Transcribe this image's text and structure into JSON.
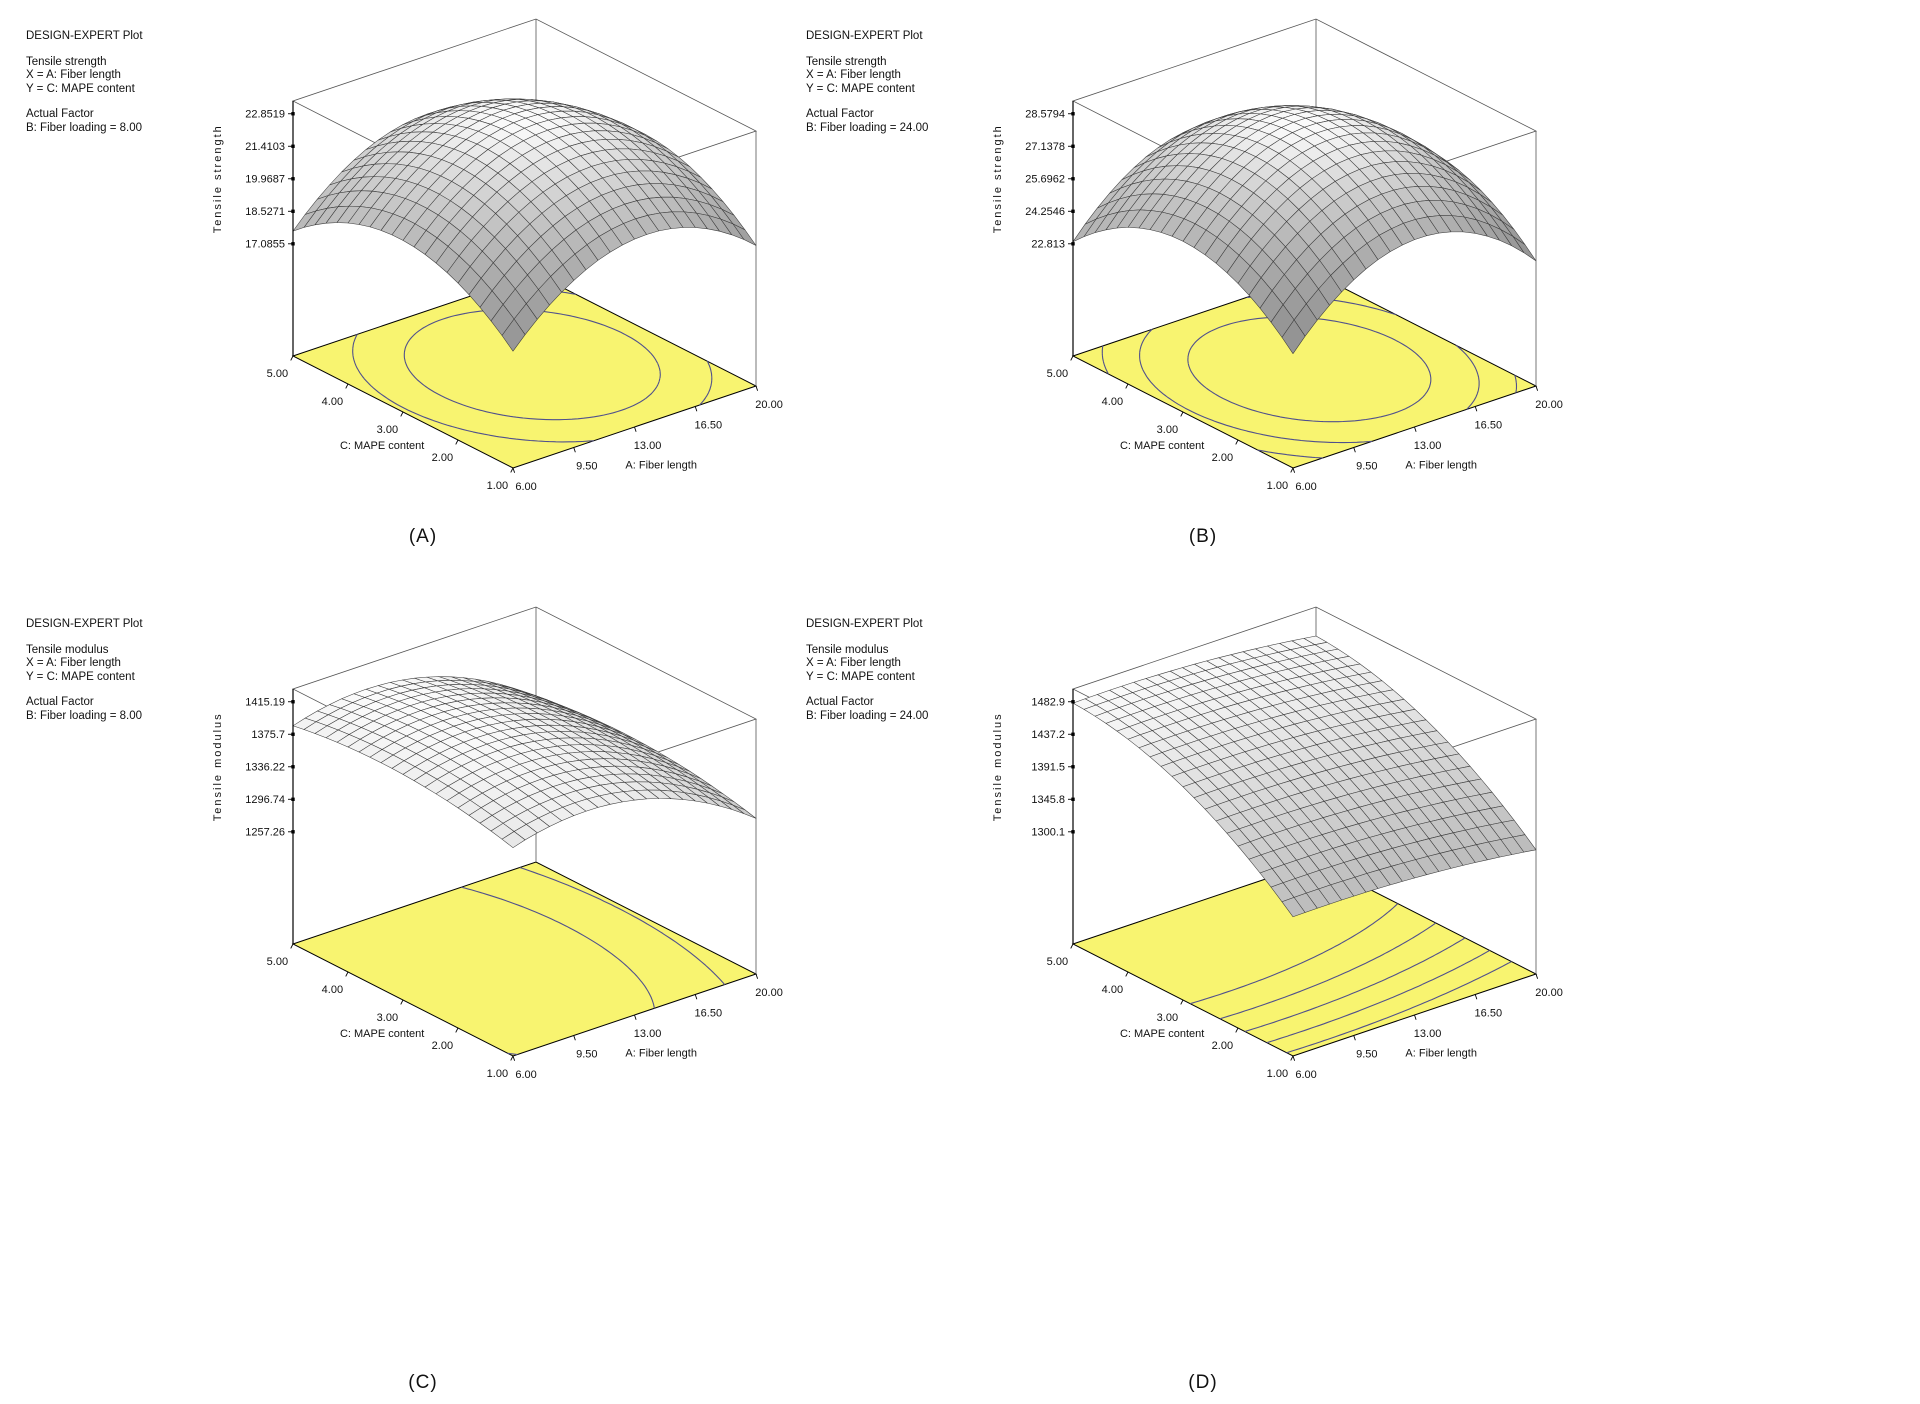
{
  "style": {
    "background": "#FFFFFF",
    "floor_color": "#F8F470",
    "contour_color": "#50508C",
    "mesh_line_color": "#3C3C3C",
    "box_line_color": "#555555",
    "axis_color": "#000000",
    "text_color": "#111111"
  },
  "panels": [
    {
      "caption": "(A)",
      "info": {
        "header": "DESIGN-EXPERT Plot",
        "response": "Tensile strength",
        "x_line": "X = A: Fiber length",
        "y_line": "Y = C: MAPE content",
        "actual_factor_label": "Actual Factor",
        "actual_factor_value": "B: Fiber loading = 8.00"
      }
    },
    {
      "caption": "(B)",
      "info": {
        "header": "DESIGN-EXPERT Plot",
        "response": "Tensile strength",
        "x_line": "X = A: Fiber length",
        "y_line": "Y = C: MAPE content",
        "actual_factor_label": "Actual Factor",
        "actual_factor_value": "B: Fiber loading = 24.00"
      }
    },
    {
      "caption": "(C)",
      "info": {
        "header": "DESIGN-EXPERT Plot",
        "response": "Tensile modulus",
        "x_line": "X = A: Fiber length",
        "y_line": "Y = C: MAPE content",
        "actual_factor_label": "Actual Factor",
        "actual_factor_value": "B: Fiber loading = 8.00"
      }
    },
    {
      "caption": "(D)",
      "info": {
        "header": "DESIGN-EXPERT Plot",
        "response": "Tensile modulus",
        "x_line": "X = A: Fiber length",
        "y_line": "Y = C: MAPE content",
        "actual_factor_label": "Actual Factor",
        "actual_factor_value": "B: Fiber loading = 24.00"
      }
    }
  ],
  "chart_data": [
    {
      "type": "surface",
      "title": "Response surface: Tensile strength at B: Fiber loading = 8.00",
      "x": {
        "label": "A: Fiber length",
        "ticks": [
          "6.00",
          "9.50",
          "13.00",
          "16.50",
          "20.00"
        ],
        "range": [
          6,
          20
        ]
      },
      "y": {
        "label": "C: MAPE content",
        "ticks": [
          "1.00",
          "2.00",
          "3.00",
          "4.00",
          "5.00"
        ],
        "range": [
          1,
          5
        ]
      },
      "z": {
        "label": "Tensile strength",
        "ticks": [
          "17.0855",
          "18.5271",
          "19.9687",
          "21.4103",
          "22.8519"
        ],
        "range": [
          17.0855,
          22.8519
        ]
      },
      "model": {
        "note": "z = peak - au*(u-u0)^2 - av*(v-v0)^2, u,v normalized 0..1 over axis ranges",
        "peak": 22.9,
        "u0": 0.55,
        "v0": 0.52,
        "au": 10.5,
        "av": 9.0
      },
      "contour_levels": [
        19.9687,
        21.4103
      ]
    },
    {
      "type": "surface",
      "title": "Response surface: Tensile strength at B: Fiber loading = 24.00",
      "x": {
        "label": "A: Fiber length",
        "ticks": [
          "6.00",
          "9.50",
          "13.00",
          "16.50",
          "20.00"
        ],
        "range": [
          6,
          20
        ]
      },
      "y": {
        "label": "C: MAPE content",
        "ticks": [
          "1.00",
          "2.00",
          "3.00",
          "4.00",
          "5.00"
        ],
        "range": [
          1,
          5
        ]
      },
      "z": {
        "label": "Tensile strength",
        "ticks": [
          "22.813",
          "24.2546",
          "25.6962",
          "27.1378",
          "28.5794"
        ],
        "range": [
          22.813,
          28.5794
        ]
      },
      "model": {
        "note": "z = peak - au*(u-u0)^2 - av*(v-v0)^2",
        "peak": 28.65,
        "u0": 0.52,
        "v0": 0.5,
        "au": 12.0,
        "av": 10.0
      },
      "contour_levels": [
        24.2546,
        25.6962,
        27.1378
      ]
    },
    {
      "type": "surface",
      "title": "Response surface: Tensile modulus at B: Fiber loading = 8.00",
      "x": {
        "label": "A: Fiber length",
        "ticks": [
          "6.00",
          "9.50",
          "13.00",
          "16.50",
          "20.00"
        ],
        "range": [
          6,
          20
        ]
      },
      "y": {
        "label": "C: MAPE content",
        "ticks": [
          "1.00",
          "2.00",
          "3.00",
          "4.00",
          "5.00"
        ],
        "range": [
          1,
          5
        ]
      },
      "z": {
        "label": "Tensile modulus",
        "ticks": [
          "1257.26",
          "1296.74",
          "1336.22",
          "1375.7",
          "1415.19"
        ],
        "range": [
          1257.26,
          1415.19
        ]
      },
      "model": {
        "note": "z = peak - au*(u-u0)^2 - av*(v-v0)^2",
        "peak": 1410,
        "u0": 0.3,
        "v0": 0.6,
        "au": 160,
        "av": 60
      },
      "contour_levels": [
        1296.74,
        1336.22,
        1375.7
      ]
    },
    {
      "type": "surface",
      "title": "Response surface: Tensile modulus at B: Fiber loading = 24.00",
      "x": {
        "label": "A: Fiber length",
        "ticks": [
          "6.00",
          "9.50",
          "13.00",
          "16.50",
          "20.00"
        ],
        "range": [
          6,
          20
        ]
      },
      "y": {
        "label": "C: MAPE content",
        "ticks": [
          "1.00",
          "2.00",
          "3.00",
          "4.00",
          "5.00"
        ],
        "range": [
          1,
          5
        ]
      },
      "z": {
        "label": "Tensile modulus",
        "ticks": [
          "1300.1",
          "1345.8",
          "1391.5",
          "1437.2",
          "1482.9"
        ],
        "range": [
          1300.1,
          1482.9
        ]
      },
      "model": {
        "note": "z = peak - au*(u-u0)^2 - av*(v-v0)^2",
        "peak": 1482,
        "u0": 0.15,
        "v0": 1.05,
        "au": 30,
        "av": 130
      },
      "contour_levels": [
        1345.8,
        1368.65,
        1391.5,
        1414.35,
        1437.2
      ]
    }
  ]
}
